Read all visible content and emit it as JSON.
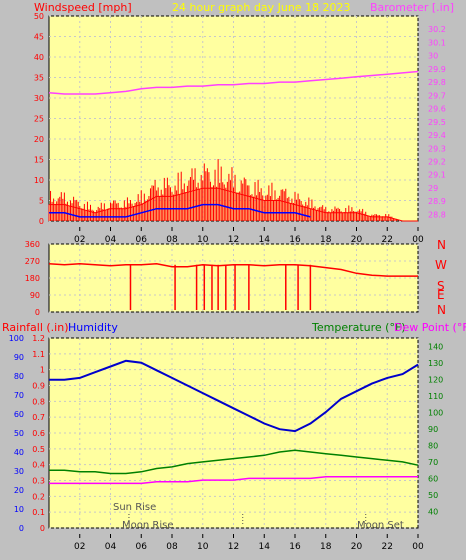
{
  "header": {
    "title": "24 hour graph day   June 18 2023",
    "left_label": "Windspeed [mph]",
    "right_label": "Barometer [.in]"
  },
  "direction": {
    "labels": [
      "N",
      "W",
      "S",
      "E",
      "N"
    ],
    "ticks": [
      "360",
      "270",
      "180",
      "90",
      "0"
    ]
  },
  "lower": {
    "rain_label": "Rainfall (.in)",
    "humidity_label": "Humidity",
    "temp_label": "Temperature (°F)",
    "dew_label": "Dew Point (°F)",
    "sun_rise": "Sun Rise",
    "moon_rise": "Moon Rise",
    "moon_set": "Moon Set"
  },
  "x_ticks": [
    "02",
    "04",
    "06",
    "08",
    "10",
    "12",
    "14",
    "16",
    "18",
    "20",
    "22",
    "00"
  ],
  "colors": {
    "plot_bg": "#ffffa0",
    "frame_bg": "#c0c0c0",
    "wind": "#ff0000",
    "gust": "#ff0000",
    "avg_wind": "#0000ff",
    "wind_green": "#008000",
    "barometer": "#ff40ff",
    "humidity": "#0000cc",
    "temperature": "#008000",
    "dewpoint": "#ff00ff",
    "axis_red": "#ff0000",
    "axis_blue": "#0000ff",
    "axis_green": "#008000",
    "title_yellow": "#ffff00"
  },
  "chart_data": [
    {
      "type": "line",
      "panel": "wind-barometer",
      "xlabel": "",
      "x_ticks": [
        "02",
        "04",
        "06",
        "08",
        "10",
        "12",
        "14",
        "16",
        "18",
        "20",
        "22",
        "00"
      ],
      "y_left_ticks": [
        "0",
        "5",
        "10",
        "15",
        "20",
        "25",
        "30",
        "35",
        "40",
        "45",
        "50"
      ],
      "y_left_lim": [
        0,
        50
      ],
      "y_right_ticks": [
        "28.8",
        "28.9",
        "29",
        "29.1",
        "29.2",
        "29.3",
        "29.4",
        "29.5",
        "29.6",
        "29.7",
        "29.8",
        "29.9",
        "30",
        "30.1",
        "30.2"
      ],
      "y_right_lim": [
        28.75,
        30.3
      ],
      "series": [
        {
          "name": "Barometer [.in]",
          "axis": "right",
          "x": [
            0,
            1,
            2,
            3,
            4,
            5,
            6,
            7,
            8,
            9,
            10,
            11,
            12,
            13,
            14,
            15,
            16,
            17,
            18,
            19,
            20,
            21,
            22,
            23,
            24
          ],
          "values": [
            29.72,
            29.71,
            29.71,
            29.71,
            29.72,
            29.73,
            29.75,
            29.76,
            29.76,
            29.77,
            29.77,
            29.78,
            29.78,
            29.79,
            29.79,
            29.8,
            29.8,
            29.81,
            29.82,
            29.83,
            29.84,
            29.85,
            29.86,
            29.87,
            29.88
          ]
        },
        {
          "name": "",
          "axis": "left",
          "x": [
            0,
            1,
            2,
            3,
            4,
            5,
            6,
            7,
            8,
            9,
            10,
            11,
            12,
            13,
            14,
            15,
            16,
            17,
            18,
            19,
            20,
            21,
            22,
            23,
            24
          ],
          "values": [
            4,
            4,
            3,
            2,
            3,
            3,
            4,
            6,
            6,
            7,
            8,
            8,
            7,
            6,
            5,
            5,
            4,
            3,
            2,
            2,
            2,
            1,
            1,
            0,
            0
          ]
        },
        {
          "name": "",
          "axis": "left",
          "x": [
            0,
            1,
            2,
            3,
            4,
            5,
            6,
            7,
            8,
            9,
            10,
            11,
            12,
            13,
            14,
            15,
            16,
            17
          ],
          "values": [
            2,
            2,
            1,
            1,
            1,
            1,
            2,
            3,
            3,
            3,
            4,
            4,
            3,
            3,
            2,
            2,
            2,
            1
          ]
        }
      ]
    },
    {
      "type": "line",
      "panel": "wind-direction",
      "y_ticks": [
        "360",
        "270",
        "180",
        "90",
        "0"
      ],
      "ylim": [
        0,
        360
      ],
      "series": [
        {
          "name": "",
          "x": [
            0,
            1,
            2,
            3,
            4,
            5,
            6,
            7,
            8,
            9,
            10,
            11,
            12,
            13,
            14,
            15,
            16,
            17,
            18,
            19,
            20,
            21,
            22,
            23,
            24
          ],
          "values": [
            255,
            250,
            255,
            250,
            245,
            250,
            250,
            255,
            240,
            240,
            250,
            245,
            250,
            250,
            245,
            250,
            250,
            245,
            235,
            225,
            205,
            195,
            190,
            190,
            190
          ]
        }
      ]
    },
    {
      "type": "line",
      "panel": "humidity-temperature",
      "y_left_rain_ticks": [
        "0",
        "0.1",
        "0.2",
        "0.3",
        "0.4",
        "0.5",
        "0.6",
        "0.7",
        "0.8",
        "0.9",
        "1",
        "1.1",
        "1.2"
      ],
      "y_left_rain_lim": [
        0,
        1.2
      ],
      "y_left_hum_ticks": [
        "0",
        "10",
        "20",
        "30",
        "40",
        "50",
        "60",
        "70",
        "80",
        "90",
        "100"
      ],
      "y_left_hum_lim": [
        0,
        100
      ],
      "y_right_ticks": [
        "40",
        "50",
        "60",
        "70",
        "80",
        "90",
        "100",
        "110",
        "120",
        "130",
        "140"
      ],
      "y_right_lim": [
        30,
        145
      ],
      "series": [
        {
          "name": "Humidity",
          "axis": "humidity",
          "x": [
            0,
            1,
            2,
            3,
            4,
            5,
            6,
            7,
            8,
            9,
            10,
            11,
            12,
            13,
            14,
            15,
            16,
            17,
            18,
            19,
            20,
            21,
            22,
            23,
            24
          ],
          "values": [
            78,
            78,
            79,
            82,
            85,
            88,
            87,
            83,
            79,
            75,
            71,
            67,
            63,
            59,
            55,
            52,
            51,
            55,
            61,
            68,
            72,
            76,
            79,
            81,
            86
          ]
        },
        {
          "name": "Temperature (°F)",
          "axis": "temp",
          "x": [
            0,
            1,
            2,
            3,
            4,
            5,
            6,
            7,
            8,
            9,
            10,
            11,
            12,
            13,
            14,
            15,
            16,
            17,
            18,
            19,
            20,
            21,
            22,
            23,
            24
          ],
          "values": [
            65,
            65,
            64,
            64,
            63,
            63,
            64,
            66,
            67,
            69,
            70,
            71,
            72,
            73,
            74,
            76,
            77,
            76,
            75,
            74,
            73,
            72,
            71,
            70,
            68
          ]
        },
        {
          "name": "Dew Point (°F)",
          "axis": "temp",
          "x": [
            0,
            1,
            2,
            3,
            4,
            5,
            6,
            7,
            8,
            9,
            10,
            11,
            12,
            13,
            14,
            15,
            16,
            17,
            18,
            19,
            20,
            21,
            22,
            23,
            24
          ],
          "values": [
            57,
            57,
            57,
            57,
            57,
            57,
            57,
            58,
            58,
            58,
            59,
            59,
            59,
            60,
            60,
            60,
            60,
            60,
            61,
            61,
            61,
            61,
            61,
            61,
            61
          ]
        }
      ],
      "markers": [
        {
          "label": "Sun Rise",
          "x": 5.2
        },
        {
          "label": "Moon Rise",
          "x": 5.2
        },
        {
          "label": "",
          "x": 12.6
        },
        {
          "label": "Moon Set",
          "x": 20.6
        }
      ]
    }
  ]
}
